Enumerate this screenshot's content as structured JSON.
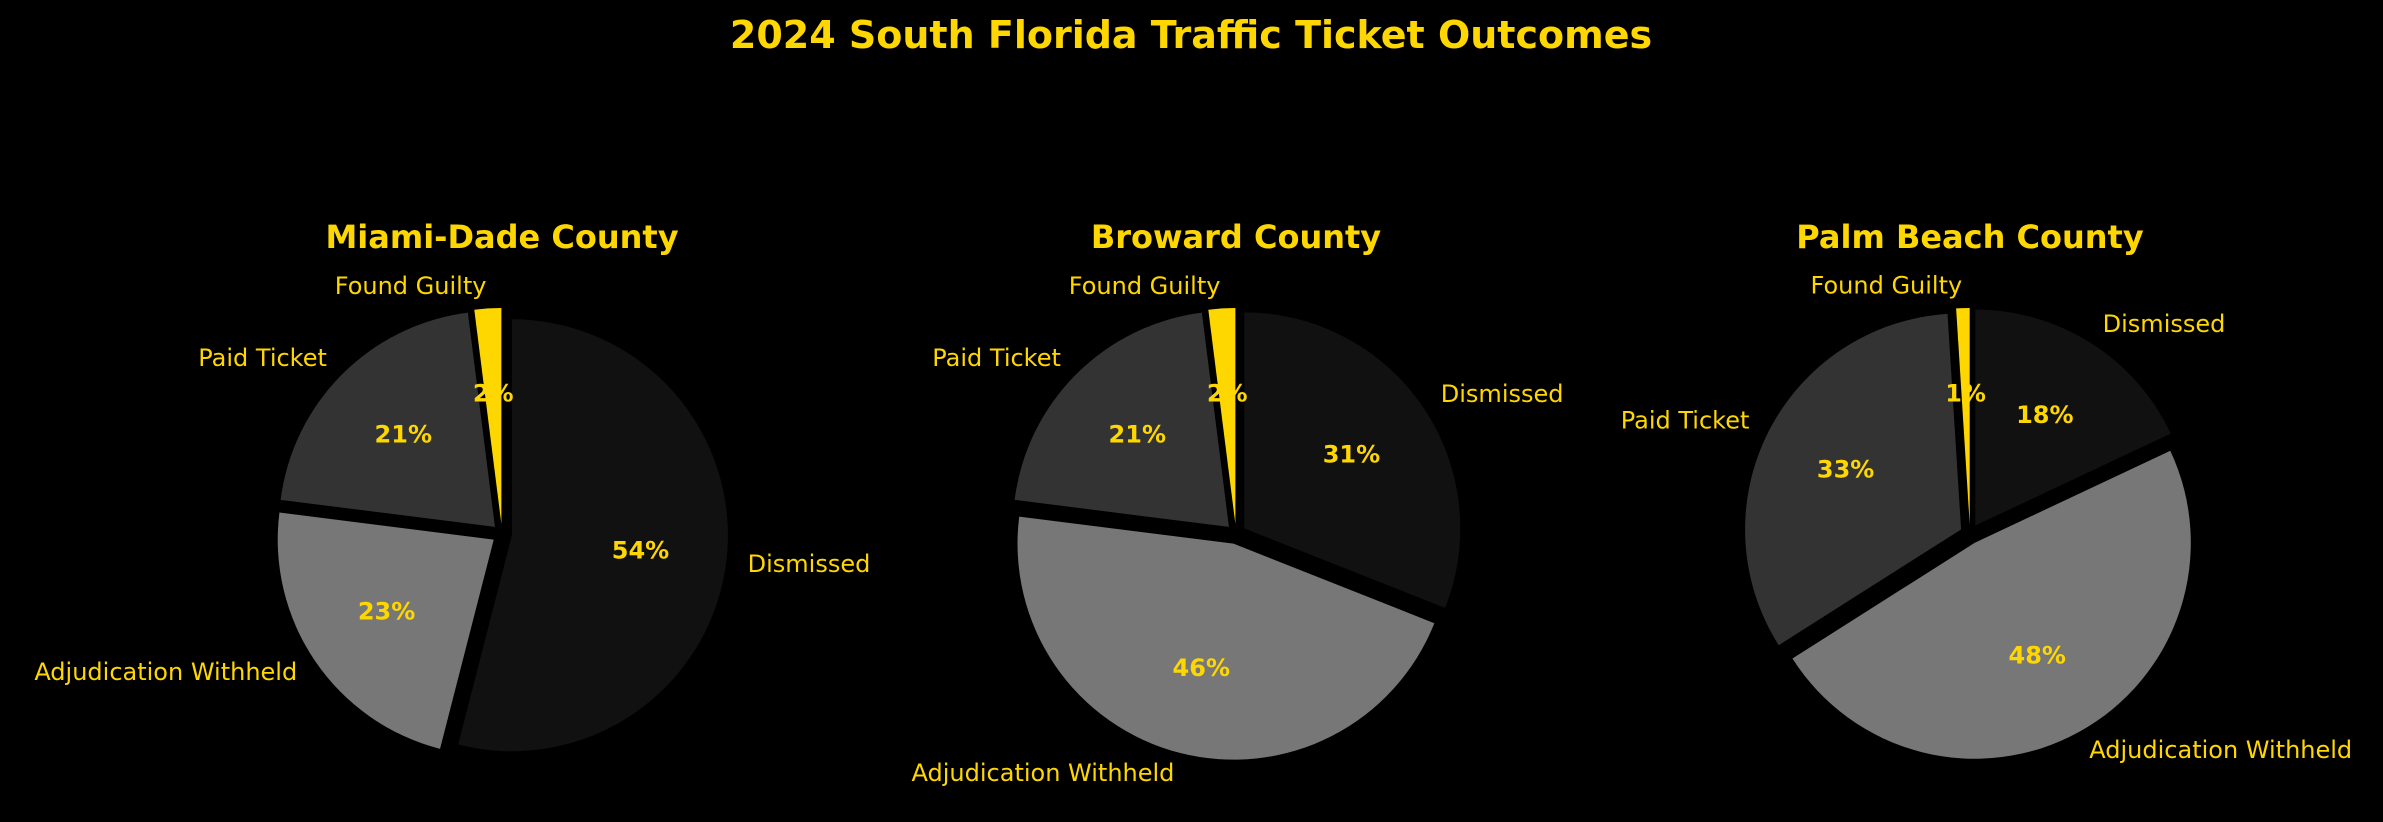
{
  "title": "2024 South Florida Traffic Ticket Outcomes",
  "colors": {
    "background": "#000000",
    "text": "#FFD700",
    "Dismissed": "#111111",
    "Adjudication Withheld": "#777777",
    "Paid Ticket": "#333333",
    "Found Guilty": "#FFD700"
  },
  "chart_data": [
    {
      "type": "pie",
      "title": "Miami-Dade County",
      "start_angle_deg": 90,
      "direction": "clockwise",
      "slices": [
        {
          "label": "Dismissed",
          "value": 54,
          "pct_label": "54%",
          "exploded": true
        },
        {
          "label": "Adjudication Withheld",
          "value": 23,
          "pct_label": "23%",
          "exploded": true
        },
        {
          "label": "Paid Ticket",
          "value": 21,
          "pct_label": "21%",
          "exploded": true
        },
        {
          "label": "Found Guilty",
          "value": 2,
          "pct_label": "2%",
          "exploded": true
        }
      ]
    },
    {
      "type": "pie",
      "title": "Broward County",
      "start_angle_deg": 90,
      "direction": "clockwise",
      "slices": [
        {
          "label": "Dismissed",
          "value": 31,
          "pct_label": "31%",
          "exploded": true
        },
        {
          "label": "Adjudication Withheld",
          "value": 46,
          "pct_label": "46%",
          "exploded": true
        },
        {
          "label": "Paid Ticket",
          "value": 21,
          "pct_label": "21%",
          "exploded": true
        },
        {
          "label": "Found Guilty",
          "value": 2,
          "pct_label": "2%",
          "exploded": true
        }
      ]
    },
    {
      "type": "pie",
      "title": "Palm Beach County",
      "start_angle_deg": 90,
      "direction": "clockwise",
      "slices": [
        {
          "label": "Dismissed",
          "value": 18,
          "pct_label": "18%",
          "exploded": true
        },
        {
          "label": "Adjudication Withheld",
          "value": 48,
          "pct_label": "48%",
          "exploded": true
        },
        {
          "label": "Paid Ticket",
          "value": 33,
          "pct_label": "33%",
          "exploded": true
        },
        {
          "label": "Found Guilty",
          "value": 1,
          "pct_label": "1%",
          "exploded": true
        }
      ]
    }
  ]
}
